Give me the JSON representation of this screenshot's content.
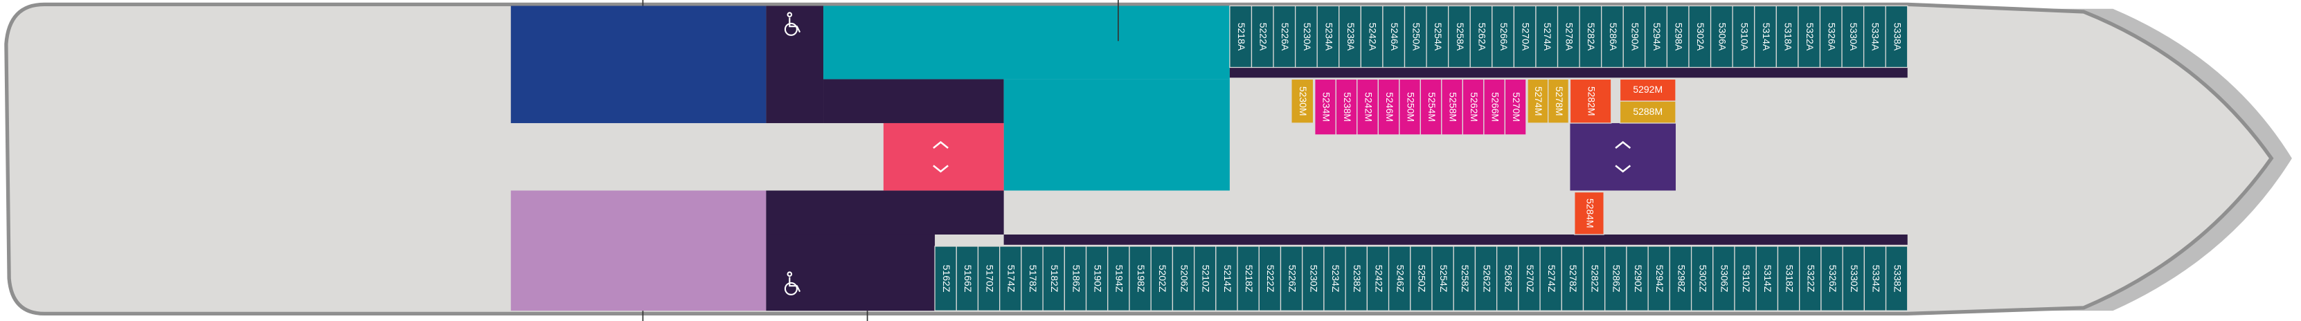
{
  "cabins": {
    "top": [
      "5218A",
      "5222A",
      "5226A",
      "5230A",
      "5234A",
      "5238A",
      "5242A",
      "5246A",
      "5250A",
      "5254A",
      "5258A",
      "5262A",
      "5266A",
      "5270A",
      "5274A",
      "5278A",
      "5282A",
      "5286A",
      "5290A",
      "5294A",
      "5298A",
      "5302A",
      "5306A",
      "5310A",
      "5314A",
      "5318A",
      "5322A",
      "5326A",
      "5330A",
      "5334A",
      "5338A"
    ],
    "middle": [
      {
        "label": "5230M",
        "color": "#d8a21f"
      },
      {
        "label": "5234M",
        "color": "#e0148c"
      },
      {
        "label": "5238M",
        "color": "#e0148c"
      },
      {
        "label": "5242M",
        "color": "#e0148c"
      },
      {
        "label": "5246M",
        "color": "#e0148c"
      },
      {
        "label": "5250M",
        "color": "#e0148c"
      },
      {
        "label": "5254M",
        "color": "#e0148c"
      },
      {
        "label": "5258M",
        "color": "#e0148c"
      },
      {
        "label": "5262M",
        "color": "#e0148c"
      },
      {
        "label": "5266M",
        "color": "#e0148c"
      },
      {
        "label": "5270M",
        "color": "#e0148c"
      },
      {
        "label": "5274M",
        "color": "#d8a21f"
      },
      {
        "label": "5278M",
        "color": "#d8a21f"
      },
      {
        "label": "5282M",
        "color": "#f04a23"
      },
      {
        "label": "5284M",
        "color": "#f04a23"
      },
      {
        "label": "5292M",
        "color": "#f04a23"
      },
      {
        "label": "5288M",
        "color": "#d8a21f"
      }
    ],
    "bottom": [
      "5162Z",
      "5166Z",
      "5170Z",
      "5174Z",
      "5178Z",
      "5182Z",
      "5186Z",
      "5190Z",
      "5194Z",
      "5198Z",
      "5202Z",
      "5206Z",
      "5210Z",
      "5214Z",
      "5218Z",
      "5222Z",
      "5226Z",
      "5230Z",
      "5234Z",
      "5238Z",
      "5242Z",
      "5246Z",
      "5250Z",
      "5254Z",
      "5258Z",
      "5262Z",
      "5266Z",
      "5270Z",
      "5274Z",
      "5278Z",
      "5282Z",
      "5286Z",
      "5290Z",
      "5294Z",
      "5298Z",
      "5302Z",
      "5306Z",
      "5310Z",
      "5314Z",
      "5318Z",
      "5322Z",
      "5326Z",
      "5330Z",
      "5334Z",
      "5338Z"
    ]
  }
}
